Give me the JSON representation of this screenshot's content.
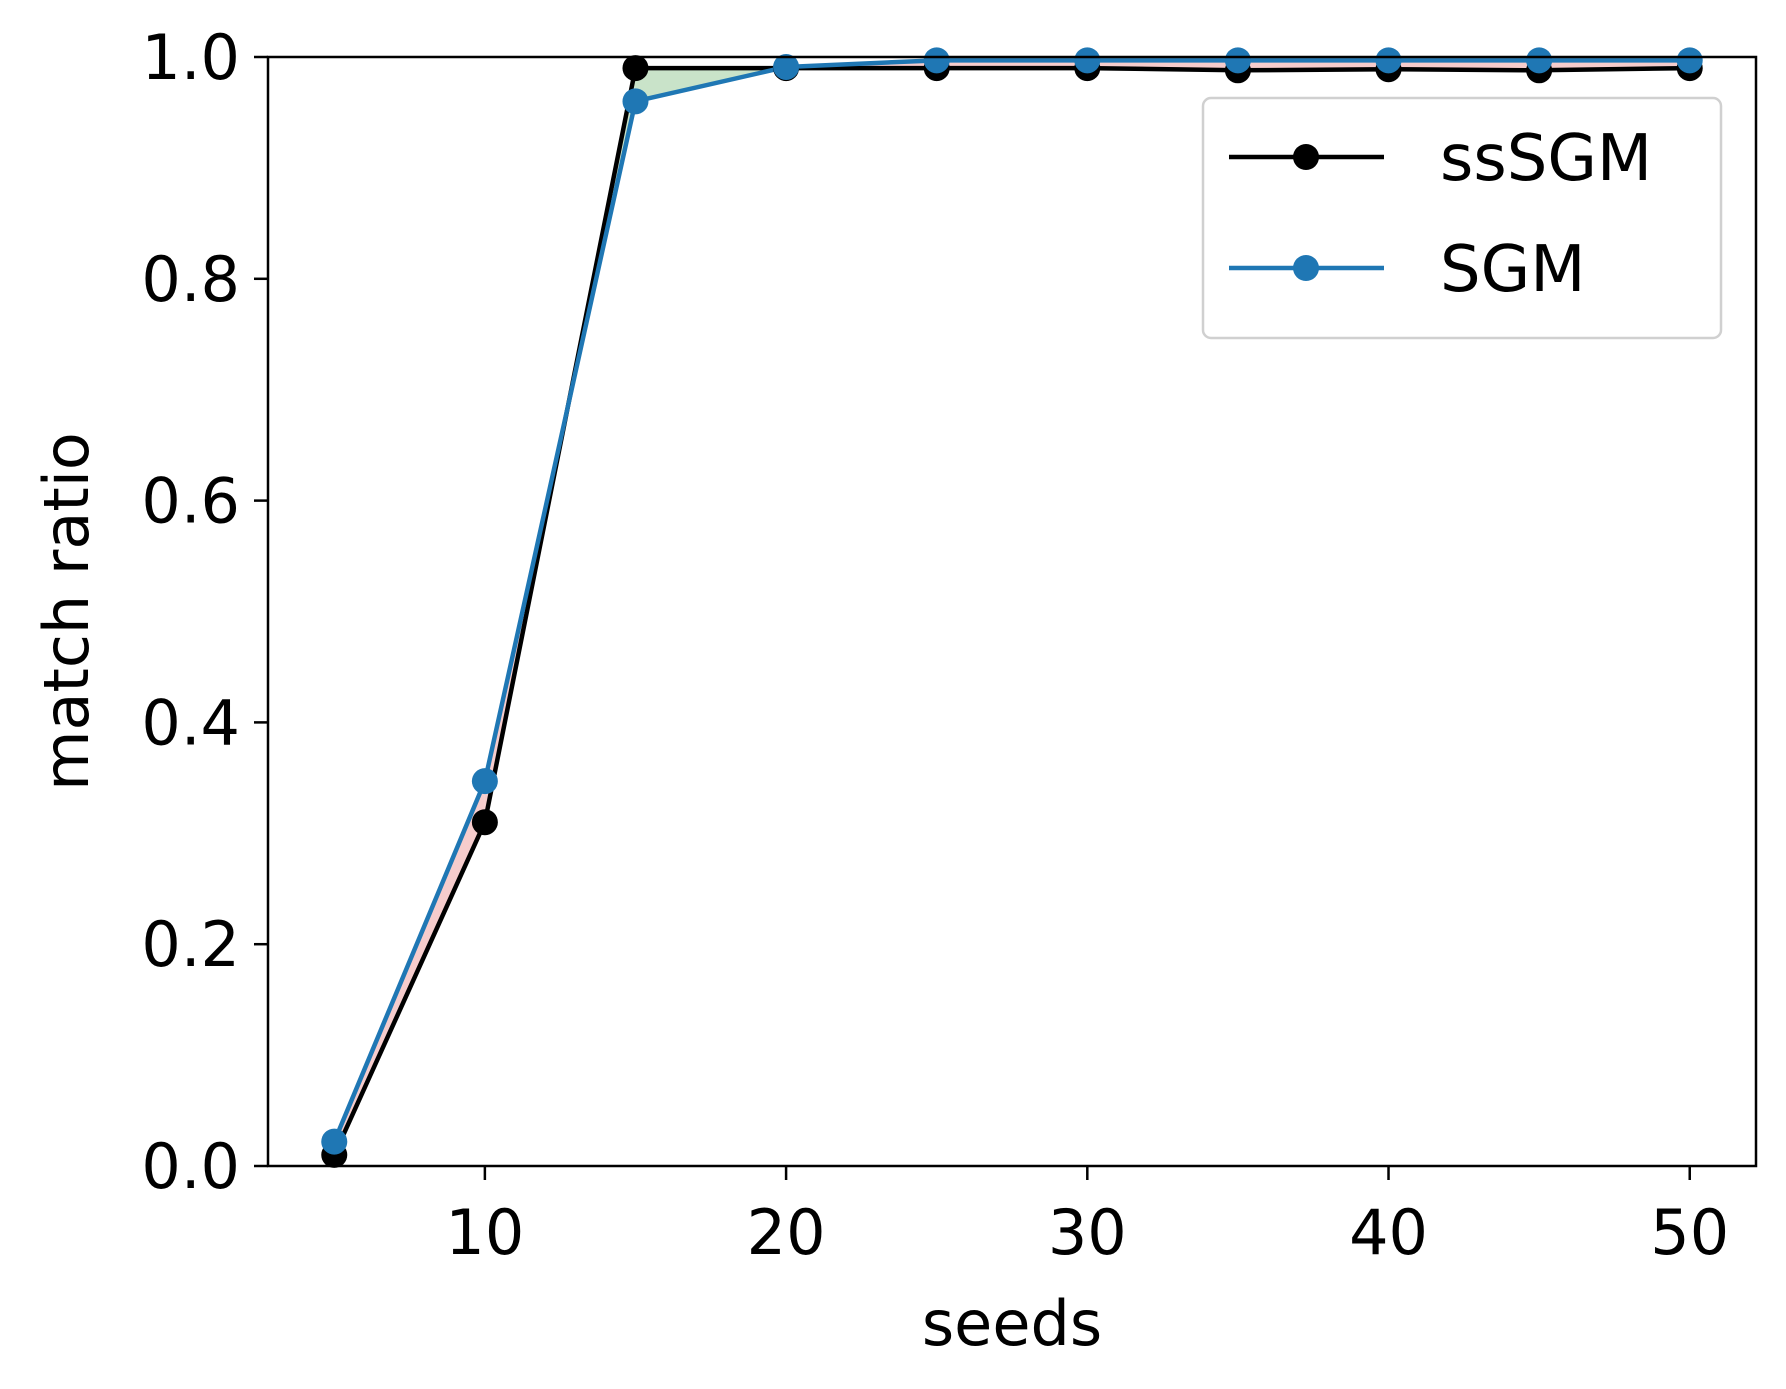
{
  "chart_data": {
    "type": "line",
    "title": "",
    "xlabel": "seeds",
    "ylabel": "match ratio",
    "xlim": [
      2.8,
      52.2
    ],
    "ylim": [
      0.0,
      1.0
    ],
    "xticks": [
      10,
      20,
      30,
      40,
      50
    ],
    "yticks": [
      0.0,
      0.2,
      0.4,
      0.6,
      0.8,
      1.0
    ],
    "x": [
      5,
      10,
      15,
      20,
      25,
      30,
      35,
      40,
      45,
      50
    ],
    "grid": false,
    "legend_position": "top-right",
    "series": [
      {
        "name": "ssSGM",
        "color": "#000000",
        "values": [
          0.01,
          0.31,
          0.99,
          0.99,
          0.99,
          0.99,
          0.988,
          0.989,
          0.988,
          0.99
        ]
      },
      {
        "name": "SGM",
        "color": "#1f77b4",
        "values": [
          0.022,
          0.347,
          0.96,
          0.991,
          0.997,
          0.997,
          0.997,
          0.997,
          0.997,
          0.997
        ]
      }
    ],
    "fill_colors": {
      "first_higher": "#c9e3c9",
      "second_higher": "#f6cccc"
    }
  }
}
